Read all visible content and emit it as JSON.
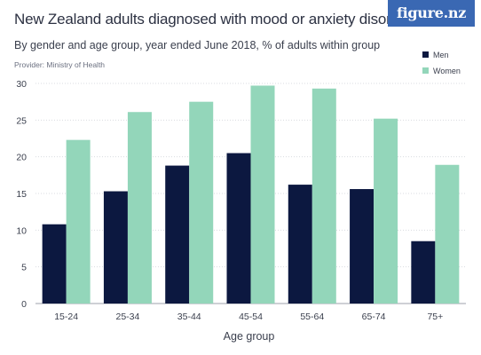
{
  "header": {
    "title": "New Zealand adults diagnosed with mood or anxiety disorders",
    "subtitle": "By gender and age group, year ended June 2018, % of adults within group",
    "provider": "Provider: Ministry of Health",
    "logo": "figure.nz"
  },
  "colors": {
    "men": "#0c1840",
    "women": "#93d6ba",
    "grid": "#d9dbe0",
    "axis_text": "#3a3f4d",
    "logo_bg": "#3a68b3"
  },
  "chart_data": {
    "type": "bar",
    "title": "New Zealand adults diagnosed with mood or anxiety disorders",
    "subtitle": "By gender and age group, year ended June 2018, % of adults within group",
    "xlabel": "Age group",
    "ylabel": "",
    "categories": [
      "15-24",
      "25-34",
      "35-44",
      "45-54",
      "55-64",
      "65-74",
      "75+"
    ],
    "series": [
      {
        "name": "Men",
        "values": [
          10.8,
          15.3,
          18.8,
          20.5,
          16.2,
          15.6,
          8.5
        ]
      },
      {
        "name": "Women",
        "values": [
          22.3,
          26.1,
          27.5,
          29.7,
          29.3,
          25.2,
          18.9
        ]
      }
    ],
    "ylim": [
      0,
      30
    ],
    "yticks": [
      "0",
      "5",
      "10",
      "15",
      "20",
      "25",
      "30"
    ],
    "grid": true,
    "legend_position": "top-right"
  }
}
